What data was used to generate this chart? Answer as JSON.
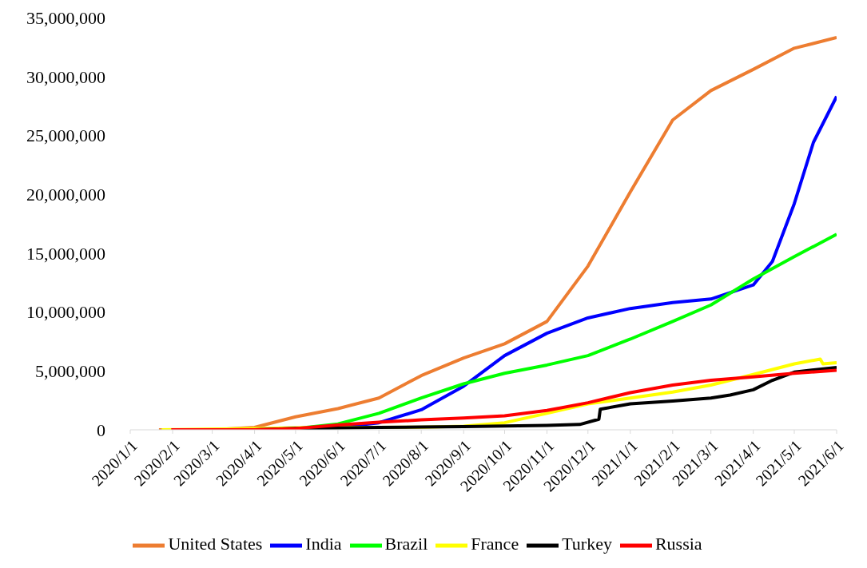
{
  "chart_data": {
    "type": "line",
    "legend": "bottom",
    "grid": false,
    "marker": "none",
    "line_style": "solid",
    "ylim": [
      0,
      35000000
    ],
    "yticks": [
      {
        "value": 0,
        "label": "0"
      },
      {
        "value": 5000000,
        "label": "5,000,000"
      },
      {
        "value": 10000000,
        "label": "10,000,000"
      },
      {
        "value": 15000000,
        "label": "15,000,000"
      },
      {
        "value": 20000000,
        "label": "20,000,000"
      },
      {
        "value": 25000000,
        "label": "25,000,000"
      },
      {
        "value": 30000000,
        "label": "30,000,000"
      },
      {
        "value": 35000000,
        "label": "35,000,000"
      }
    ],
    "xlim": [
      "2020-01-01",
      "2021-06-01"
    ],
    "xticks": [
      {
        "value": "2020-01-01",
        "label": "2020/1/1"
      },
      {
        "value": "2020-02-01",
        "label": "2020/2/1"
      },
      {
        "value": "2020-03-01",
        "label": "2020/3/1"
      },
      {
        "value": "2020-04-01",
        "label": "2020/4/1"
      },
      {
        "value": "2020-05-01",
        "label": "2020/5/1"
      },
      {
        "value": "2020-06-01",
        "label": "2020/6/1"
      },
      {
        "value": "2020-07-01",
        "label": "2020/7/1"
      },
      {
        "value": "2020-08-01",
        "label": "2020/8/1"
      },
      {
        "value": "2020-09-01",
        "label": "2020/9/1"
      },
      {
        "value": "2020-10-01",
        "label": "2020/10/1"
      },
      {
        "value": "2020-11-01",
        "label": "2020/11/1"
      },
      {
        "value": "2020-12-01",
        "label": "2020/12/1"
      },
      {
        "value": "2021-01-01",
        "label": "2021/1/1"
      },
      {
        "value": "2021-02-01",
        "label": "2021/2/1"
      },
      {
        "value": "2021-03-01",
        "label": "2021/3/1"
      },
      {
        "value": "2021-04-01",
        "label": "2021/4/1"
      },
      {
        "value": "2021-05-01",
        "label": "2021/5/1"
      },
      {
        "value": "2021-06-01",
        "label": "2021/6/1"
      }
    ],
    "series": [
      {
        "name": "United States",
        "color": "#ed7d31",
        "x": [
          "2020-01-22",
          "2020-03-01",
          "2020-04-01",
          "2020-05-01",
          "2020-06-01",
          "2020-07-01",
          "2020-08-01",
          "2020-09-01",
          "2020-10-01",
          "2020-11-01",
          "2020-12-01",
          "2021-01-01",
          "2021-02-01",
          "2021-03-01",
          "2021-04-01",
          "2021-05-01",
          "2021-06-01"
        ],
        "values": [
          0,
          0,
          200000,
          1100000,
          1800000,
          2700000,
          4600000,
          6100000,
          7300000,
          9200000,
          13900000,
          20200000,
          26300000,
          28800000,
          30600000,
          32400000,
          33300000
        ]
      },
      {
        "name": "India",
        "color": "#0000ff",
        "x": [
          "2020-05-15",
          "2020-06-01",
          "2020-07-01",
          "2020-08-01",
          "2020-09-01",
          "2020-10-01",
          "2020-11-01",
          "2020-12-01",
          "2021-01-01",
          "2021-02-01",
          "2021-03-01",
          "2021-04-01",
          "2021-04-15",
          "2021-05-01",
          "2021-05-15",
          "2021-06-01"
        ],
        "values": [
          100000,
          200000,
          600000,
          1700000,
          3700000,
          6300000,
          8200000,
          9500000,
          10300000,
          10800000,
          11100000,
          12300000,
          14300000,
          19200000,
          24400000,
          28300000
        ]
      },
      {
        "name": "Brazil",
        "color": "#00ff00",
        "x": [
          "2020-02-26",
          "2020-04-01",
          "2020-05-01",
          "2020-06-01",
          "2020-07-01",
          "2020-08-01",
          "2020-09-01",
          "2020-10-01",
          "2020-11-01",
          "2020-12-01",
          "2021-01-01",
          "2021-02-01",
          "2021-03-01",
          "2021-04-01",
          "2021-05-01",
          "2021-06-01"
        ],
        "values": [
          0,
          0,
          100000,
          500000,
          1400000,
          2700000,
          3900000,
          4800000,
          5500000,
          6300000,
          7700000,
          9200000,
          10600000,
          12800000,
          14700000,
          16600000
        ]
      },
      {
        "name": "France",
        "color": "#ffff00",
        "x": [
          "2020-01-24",
          "2020-04-01",
          "2020-05-01",
          "2020-06-01",
          "2020-07-01",
          "2020-08-01",
          "2020-09-01",
          "2020-10-01",
          "2020-11-01",
          "2020-12-01",
          "2021-01-01",
          "2021-02-01",
          "2021-03-01",
          "2021-04-01",
          "2021-05-01",
          "2021-05-20",
          "2021-05-22",
          "2021-06-01"
        ],
        "values": [
          0,
          100000,
          170000,
          190000,
          200000,
          220000,
          300000,
          600000,
          1400000,
          2200000,
          2700000,
          3200000,
          3800000,
          4700000,
          5600000,
          6000000,
          5600000,
          5700000
        ]
      },
      {
        "name": "Turkey",
        "color": "#000000",
        "x": [
          "2020-03-11",
          "2020-04-01",
          "2020-05-01",
          "2020-06-01",
          "2020-07-01",
          "2020-08-01",
          "2020-09-01",
          "2020-10-01",
          "2020-11-01",
          "2020-11-25",
          "2020-12-09",
          "2020-12-10",
          "2021-01-01",
          "2021-02-01",
          "2021-03-01",
          "2021-03-15",
          "2021-04-01",
          "2021-04-15",
          "2021-05-01",
          "2021-06-01"
        ],
        "values": [
          0,
          0,
          120000,
          160000,
          200000,
          230000,
          270000,
          320000,
          380000,
          450000,
          900000,
          1750000,
          2200000,
          2450000,
          2700000,
          2950000,
          3400000,
          4200000,
          4900000,
          5300000
        ]
      },
      {
        "name": "Russia",
        "color": "#ff0000",
        "x": [
          "2020-01-31",
          "2020-04-01",
          "2020-05-01",
          "2020-06-01",
          "2020-07-01",
          "2020-08-01",
          "2020-09-01",
          "2020-10-01",
          "2020-11-01",
          "2020-12-01",
          "2021-01-01",
          "2021-02-01",
          "2021-03-01",
          "2021-04-01",
          "2021-05-01",
          "2021-06-01"
        ],
        "values": [
          0,
          0,
          110000,
          410000,
          650000,
          840000,
          1000000,
          1180000,
          1640000,
          2300000,
          3150000,
          3800000,
          4200000,
          4500000,
          4800000,
          5050000
        ]
      }
    ]
  }
}
